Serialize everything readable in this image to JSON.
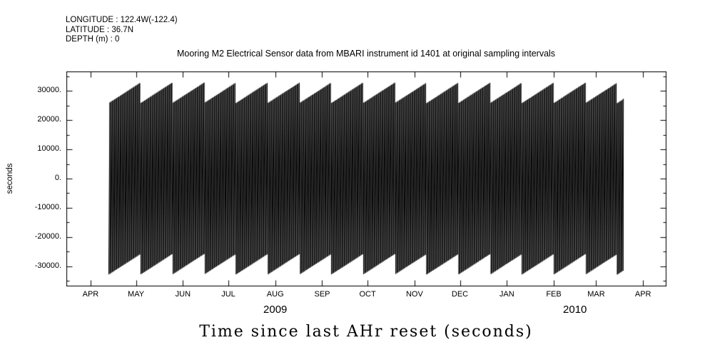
{
  "station_info": {
    "lines": [
      "LONGITUDE : 122.4W(-122.4)",
      "LATITUDE : 36.7N",
      "DEPTH (m) : 0"
    ]
  },
  "chart_data": {
    "type": "line",
    "title": "Mooring M2 Electrical Sensor data from MBARI instrument id 1401 at original sampling intervals",
    "xlabel": "Time since last AHr reset (seconds)",
    "ylabel": "seconds",
    "ylim": [
      -36600,
      36600
    ],
    "grid": false,
    "legend": "none",
    "line_color": "#000000",
    "y_major_ticks": [
      30000,
      20000,
      10000,
      0,
      -10000,
      -20000,
      -30000
    ],
    "y_tick_labels": [
      "30000.",
      "20000.",
      "10000.",
      "0.",
      "-10000.",
      "-20000.",
      "-30000."
    ],
    "y_minor_step": 5000,
    "x_axis": {
      "tick_labels": [
        "APR",
        "MAY",
        "JUN",
        "JUL",
        "AUG",
        "SEP",
        "OCT",
        "NOV",
        "DEC",
        "JAN",
        "FEB",
        "MAR",
        "APR"
      ],
      "tick_days": [
        16,
        46,
        77,
        107,
        138,
        169,
        199,
        230,
        260,
        291,
        322,
        350,
        381
      ],
      "total_days": 396,
      "year_labels": [
        {
          "label": "2009",
          "tick_span": [
            0,
            8
          ]
        },
        {
          "label": "2010",
          "tick_span": [
            9,
            12
          ]
        }
      ]
    },
    "series": [
      {
        "name": "time since last AHr reset",
        "shape": "wrapped sawtooth counter, appears as dense black band",
        "value_min": -32768,
        "value_max": 32767,
        "wrap_period_seconds": 65536,
        "start_day": 28,
        "end_day": 368,
        "envelope_tooth_depth": 7000,
        "envelope_tooth_period_days": 21,
        "color": "#000000"
      }
    ]
  }
}
